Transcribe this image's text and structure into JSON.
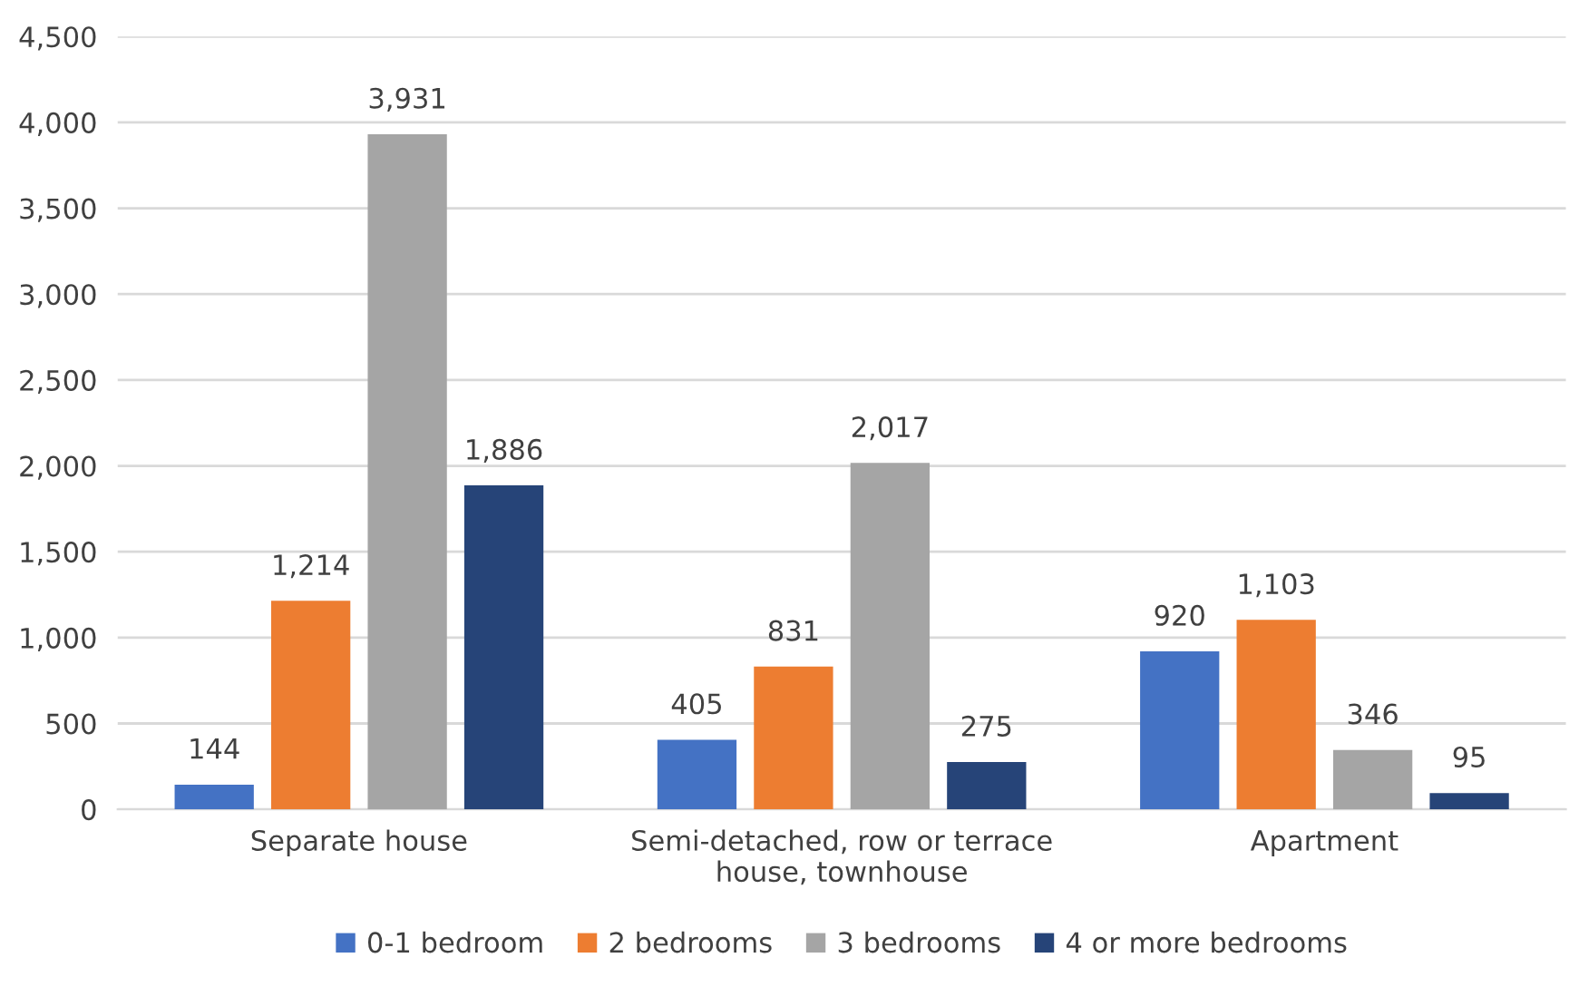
{
  "chart_data": {
    "type": "bar",
    "categories": [
      "Separate house",
      "Semi-detached, row or terrace\nhouse, townhouse",
      "Apartment"
    ],
    "series": [
      {
        "name": "0-1 bedroom",
        "color": "#4472c4",
        "values": [
          144,
          405,
          920
        ],
        "value_labels": [
          "144",
          "405",
          "920"
        ]
      },
      {
        "name": "2 bedrooms",
        "color": "#ed7d31",
        "values": [
          1214,
          831,
          1103
        ],
        "value_labels": [
          "1,214",
          "831",
          "1,103"
        ]
      },
      {
        "name": "3 bedrooms",
        "color": "#a5a5a5",
        "values": [
          3931,
          2017,
          346
        ],
        "value_labels": [
          "3,931",
          "2,017",
          "346"
        ]
      },
      {
        "name": "4 or more bedrooms",
        "color": "#264478",
        "values": [
          1886,
          275,
          95
        ],
        "value_labels": [
          "1,886",
          "275",
          "95"
        ]
      }
    ],
    "ylim": [
      0,
      4500
    ],
    "yticks": [
      0,
      {
        "value": 500,
        "label": "500"
      },
      {
        "value": 1000,
        "label": "1,000"
      },
      {
        "value": 1500,
        "label": "1,500"
      },
      {
        "value": 2000,
        "label": "2,000"
      },
      {
        "value": 2500,
        "label": "2,500"
      },
      {
        "value": 3000,
        "label": "3,000"
      },
      {
        "value": 3500,
        "label": "3,500"
      },
      {
        "value": 4000,
        "label": "4,000"
      },
      {
        "value": 4500,
        "label": "4,500"
      }
    ],
    "grid": "y",
    "legend": "bottom"
  }
}
